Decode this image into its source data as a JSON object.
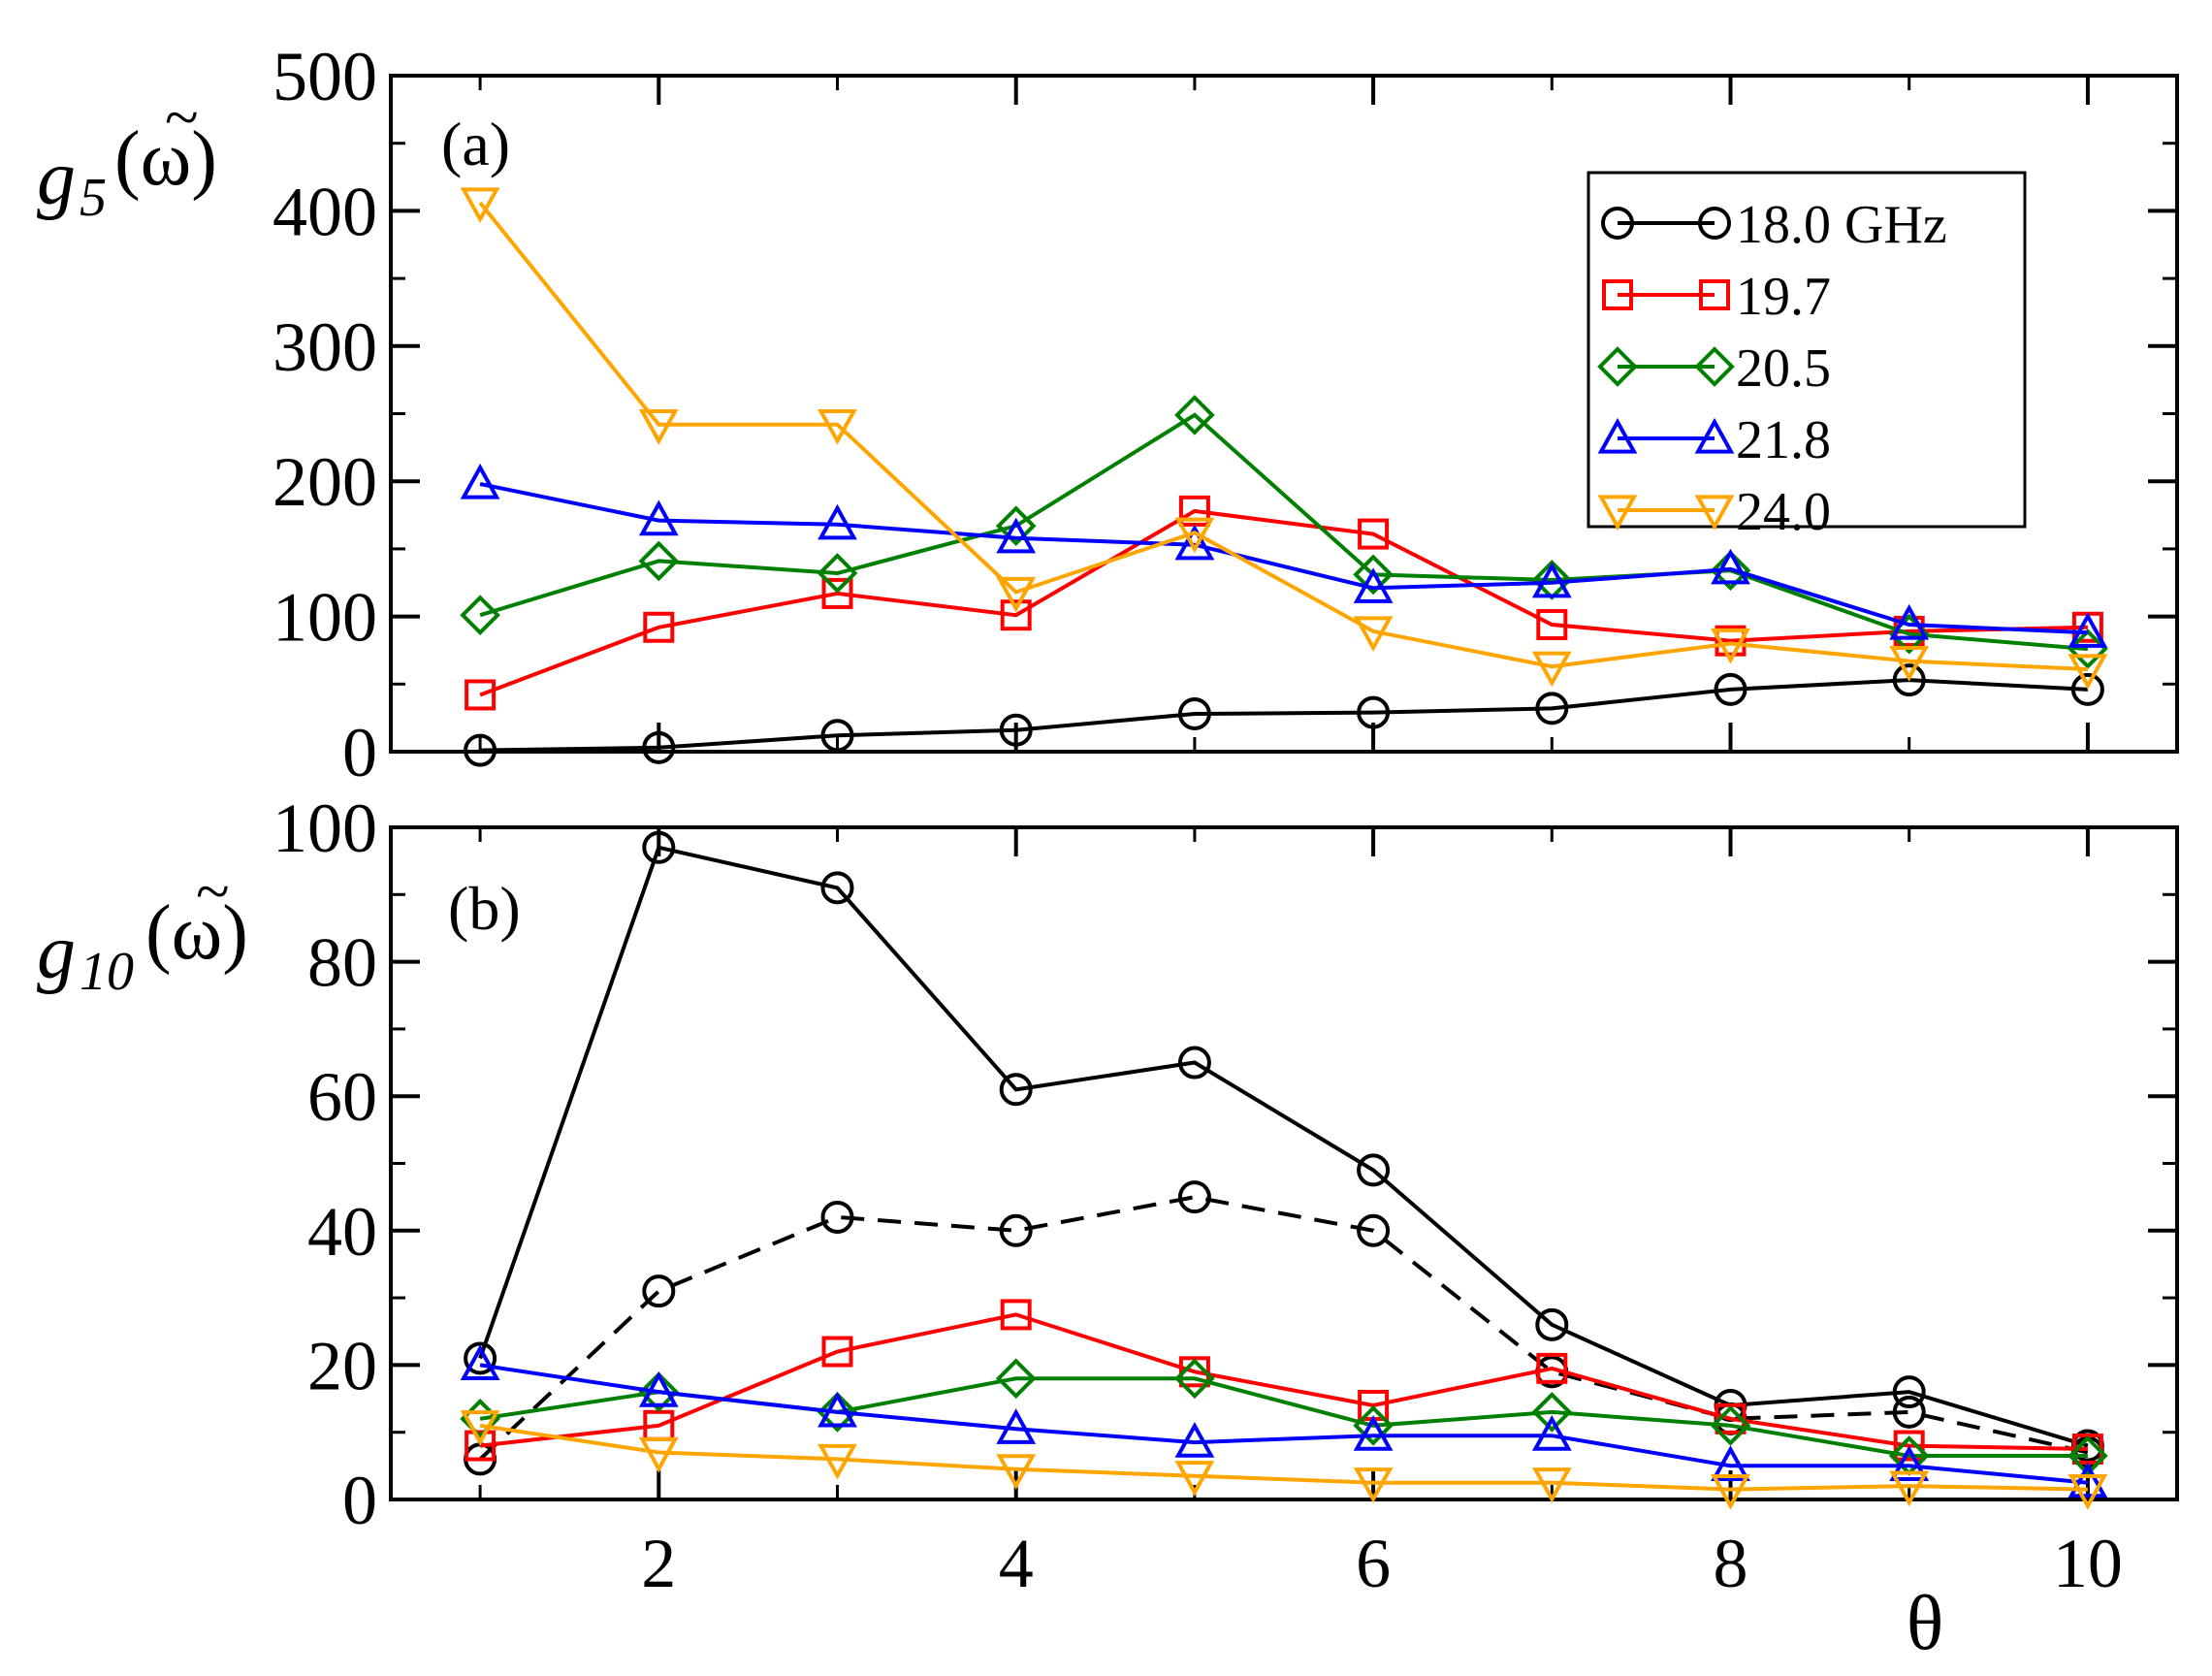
{
  "chart_data": [
    {
      "type": "line",
      "panel_label": "(a)",
      "ylabel": {
        "base": "g",
        "sub": "5",
        "arg": "(ω)",
        "accent": "~"
      },
      "xlim": [
        0.5,
        10.5
      ],
      "ylim": [
        0,
        500
      ],
      "xticks": [
        2,
        4,
        6,
        8,
        10
      ],
      "yticks": [
        0,
        100,
        200,
        300,
        400,
        500
      ],
      "x": [
        1,
        2,
        3,
        4,
        5,
        6,
        7,
        8,
        9,
        10
      ],
      "legend": {
        "placement": "top-right"
      },
      "series": [
        {
          "name": "18.0 GHz",
          "color": "#000000",
          "marker": "circle",
          "dash": "solid",
          "values": [
            1,
            3,
            12,
            16,
            28,
            29,
            32,
            46,
            53,
            46
          ]
        },
        {
          "name": "19.7",
          "color": "#ff0000",
          "marker": "square",
          "dash": "solid",
          "values": [
            42,
            92,
            117,
            101,
            178,
            161,
            94,
            82,
            89,
            92
          ]
        },
        {
          "name": "20.5",
          "color": "#008000",
          "marker": "diamond",
          "dash": "solid",
          "values": [
            101,
            141,
            132,
            167,
            249,
            131,
            127,
            134,
            87,
            76
          ]
        },
        {
          "name": "21.8",
          "color": "#0000ff",
          "marker": "triangle-up",
          "dash": "solid",
          "values": [
            198,
            171,
            168,
            158,
            153,
            121,
            125,
            135,
            94,
            88
          ]
        },
        {
          "name": "24.0",
          "color": "#ffa500",
          "marker": "triangle-down",
          "dash": "solid",
          "values": [
            406,
            242,
            242,
            118,
            162,
            89,
            63,
            80,
            67,
            61
          ]
        }
      ]
    },
    {
      "type": "line",
      "panel_label": "(b)",
      "ylabel": {
        "base": "g",
        "sub": "10",
        "arg": "(ω)",
        "accent": "~"
      },
      "xlabel": "θ",
      "xlim": [
        0.5,
        10.5
      ],
      "ylim": [
        0,
        100
      ],
      "xticks": [
        2,
        4,
        6,
        8,
        10
      ],
      "yticks": [
        0,
        20,
        40,
        60,
        80,
        100
      ],
      "x": [
        1,
        2,
        3,
        4,
        5,
        6,
        7,
        8,
        9,
        10
      ],
      "series": [
        {
          "name": "18.0 GHz",
          "color": "#000000",
          "marker": "circle",
          "dash": "solid",
          "values": [
            21,
            97,
            91,
            61,
            65,
            49,
            26,
            14,
            16,
            8
          ]
        },
        {
          "name": "18.0 GHz (dashed)",
          "color": "#000000",
          "marker": "circle",
          "dash": "dashed",
          "values": [
            6,
            31,
            42,
            40,
            45,
            40,
            19,
            12,
            13,
            7
          ]
        },
        {
          "name": "19.7",
          "color": "#ff0000",
          "marker": "square",
          "dash": "solid",
          "values": [
            8,
            11,
            22,
            27.5,
            19,
            14,
            19.5,
            12,
            8,
            7.5
          ]
        },
        {
          "name": "20.5",
          "color": "#008000",
          "marker": "diamond",
          "dash": "solid",
          "values": [
            12,
            16,
            13,
            18,
            18,
            11,
            13,
            11,
            6.5,
            6.5
          ]
        },
        {
          "name": "21.8",
          "color": "#0000ff",
          "marker": "triangle-up",
          "dash": "solid",
          "values": [
            20,
            16,
            13,
            10.5,
            8.5,
            9.5,
            9.5,
            5,
            5,
            2.5
          ]
        },
        {
          "name": "24.0",
          "color": "#ffa500",
          "marker": "triangle-down",
          "dash": "solid",
          "values": [
            11,
            7,
            6,
            4.5,
            3.5,
            2.5,
            2.5,
            1.5,
            2,
            1.5
          ]
        }
      ]
    }
  ]
}
